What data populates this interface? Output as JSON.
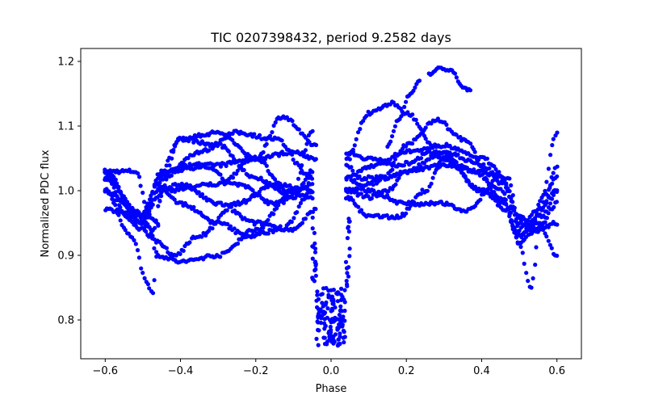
{
  "chart_data": {
    "type": "scatter",
    "title": "TIC 0207398432, period 9.2582 days",
    "xlabel": "Phase",
    "ylabel": "Normalized PDC flux",
    "xlim": [
      -0.665,
      0.665
    ],
    "ylim": [
      0.74,
      1.22
    ],
    "x_ticks": [
      -0.6,
      -0.4,
      -0.2,
      0.0,
      0.2,
      0.4,
      0.6
    ],
    "x_tick_labels": [
      "−0.6",
      "−0.4",
      "−0.2",
      "0.0",
      "0.2",
      "0.4",
      "0.6"
    ],
    "y_ticks": [
      0.8,
      0.9,
      1.0,
      1.1,
      1.2
    ],
    "y_tick_labels": [
      "0.8",
      "0.9",
      "1.0",
      "1.1",
      "1.2"
    ],
    "grid": false,
    "series": [
      {
        "name": "PDC flux",
        "color": "#0000ff",
        "trends": [
          {
            "x": [
              -0.6,
              -0.52,
              -0.48,
              -0.46,
              -0.45,
              -0.3,
              -0.2,
              -0.1,
              -0.04
            ],
            "y": [
              1.03,
              1.03,
              0.96,
              0.95,
              1.03,
              1.04,
              1.05,
              1.06,
              1.05
            ]
          },
          {
            "x": [
              -0.6,
              -0.55,
              -0.5,
              -0.47,
              -0.45,
              -0.35,
              -0.25,
              -0.15,
              -0.05
            ],
            "y": [
              1.02,
              0.98,
              0.95,
              0.94,
              1.02,
              1.06,
              1.09,
              1.08,
              1.02
            ]
          },
          {
            "x": [
              -0.6,
              -0.53,
              -0.49,
              -0.475,
              -0.45,
              -0.3,
              -0.2,
              -0.13,
              -0.04
            ],
            "y": [
              1.0,
              0.93,
              0.86,
              0.84,
              1.0,
              1.01,
              1.05,
              1.115,
              1.07
            ]
          },
          {
            "x": [
              -0.6,
              -0.52,
              -0.48,
              -0.46,
              -0.4,
              -0.3,
              -0.2,
              -0.1,
              -0.05
            ],
            "y": [
              1.03,
              0.97,
              0.93,
              0.9,
              0.89,
              0.9,
              0.94,
              1.0,
              1.09
            ]
          },
          {
            "x": [
              -0.6,
              -0.5,
              -0.46,
              -0.4,
              -0.3,
              -0.2,
              -0.12,
              -0.05
            ],
            "y": [
              1.02,
              0.95,
              0.99,
              1.08,
              1.09,
              1.05,
              1.0,
              0.99
            ]
          },
          {
            "x": [
              -0.6,
              -0.5,
              -0.46,
              -0.42,
              -0.35,
              -0.25,
              -0.15,
              -0.05
            ],
            "y": [
              0.97,
              0.96,
              0.92,
              0.9,
              0.93,
              0.98,
              1.01,
              1.0
            ]
          },
          {
            "x": [
              -0.6,
              -0.52,
              -0.46,
              -0.4,
              -0.3,
              -0.2,
              -0.1,
              -0.04
            ],
            "y": [
              1.0,
              0.95,
              1.0,
              1.01,
              0.98,
              0.95,
              0.94,
              0.97
            ]
          },
          {
            "x": [
              -0.6,
              -0.5,
              -0.46,
              -0.4,
              -0.3,
              -0.22,
              -0.13,
              -0.05
            ],
            "y": [
              1.02,
              0.96,
              1.01,
              0.98,
              0.95,
              0.93,
              0.94,
              1.0
            ]
          },
          {
            "x": [
              -0.6,
              -0.5,
              -0.46,
              -0.4,
              -0.3,
              -0.2,
              -0.1,
              -0.05
            ],
            "y": [
              1.03,
              0.94,
              1.02,
              1.08,
              1.07,
              1.02,
              0.99,
              1.03
            ]
          },
          {
            "x": [
              -0.6,
              -0.5,
              -0.45,
              -0.35,
              -0.25,
              -0.15,
              -0.05
            ],
            "y": [
              1.0,
              0.96,
              1.03,
              1.04,
              1.01,
              0.98,
              1.01
            ]
          },
          {
            "x": [
              0.04,
              0.1,
              0.15,
              0.2,
              0.3,
              0.4,
              0.45,
              0.5,
              0.53,
              0.56,
              0.6
            ],
            "y": [
              1.0,
              1.01,
              1.02,
              1.03,
              1.04,
              1.03,
              1.02,
              0.96,
              0.94,
              0.99,
              1.02
            ]
          },
          {
            "x": [
              0.04,
              0.1,
              0.18,
              0.28,
              0.38,
              0.45,
              0.5,
              0.55,
              0.6
            ],
            "y": [
              1.06,
              1.05,
              1.04,
              1.06,
              1.03,
              1.0,
              0.92,
              0.94,
              1.0
            ]
          },
          {
            "x": [
              0.04,
              0.1,
              0.16,
              0.2,
              0.3,
              0.4,
              0.46,
              0.5,
              0.53,
              0.56,
              0.6
            ],
            "y": [
              1.05,
              1.12,
              1.135,
              1.12,
              1.05,
              1.0,
              0.98,
              0.92,
              0.85,
              0.96,
              1.04
            ]
          },
          {
            "x": [
              0.04,
              0.08,
              0.14,
              0.2,
              0.28,
              0.35,
              0.45,
              0.5,
              0.55,
              0.6
            ],
            "y": [
              1.04,
              1.02,
              1.02,
              1.07,
              1.11,
              1.08,
              0.99,
              0.93,
              0.96,
              1.09
            ]
          },
          {
            "x": [
              0.04,
              0.1,
              0.18,
              0.25,
              0.3,
              0.4,
              0.47,
              0.5,
              0.55,
              0.6
            ],
            "y": [
              0.99,
              0.96,
              0.96,
              1.0,
              1.05,
              1.0,
              0.97,
              0.93,
              0.95,
              0.9
            ]
          },
          {
            "x": [
              0.04,
              0.1,
              0.2,
              0.3,
              0.36,
              0.45,
              0.5,
              0.55,
              0.6
            ],
            "y": [
              1.02,
              1.0,
              0.98,
              0.98,
              0.97,
              1.02,
              0.95,
              0.94,
              0.98
            ]
          },
          {
            "x": [
              0.04,
              0.1,
              0.15,
              0.2,
              0.3,
              0.4,
              0.46,
              0.5,
              0.55,
              0.6
            ],
            "y": [
              1.0,
              0.99,
              1.0,
              1.03,
              1.06,
              1.04,
              1.01,
              0.96,
              0.94,
              0.95
            ]
          },
          {
            "x": [
              0.04,
              0.12,
              0.2,
              0.3,
              0.4,
              0.47,
              0.5,
              0.55,
              0.6
            ],
            "y": [
              1.02,
              1.04,
              1.06,
              1.07,
              1.05,
              1.02,
              0.94,
              0.97,
              1.0
            ]
          }
        ],
        "dip": {
          "x_range": [
            -0.05,
            0.05
          ],
          "y_bottom": [
            0.76,
            0.85
          ]
        },
        "arcs": [
          {
            "x": [
              0.15,
              0.18,
              0.21,
              0.235
            ],
            "y": [
              1.07,
              1.11,
              1.15,
              1.17
            ]
          },
          {
            "x": [
              0.26,
              0.29,
              0.32,
              0.35,
              0.37
            ],
            "y": [
              1.18,
              1.19,
              1.185,
              1.16,
              1.155
            ]
          }
        ]
      }
    ]
  }
}
